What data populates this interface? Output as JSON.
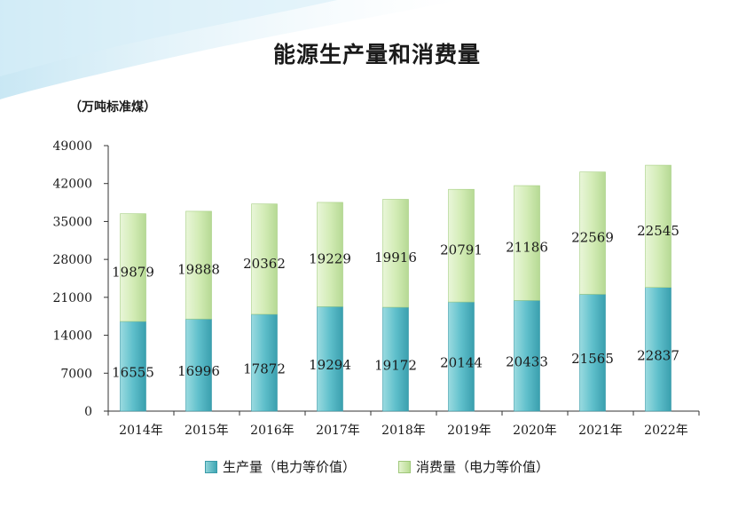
{
  "title": "能源生产量和消费量",
  "unit_label": "（万吨标准煤）",
  "legend": {
    "production": "生产量（电力等价值）",
    "consumption": "消费量（电力等价值）"
  },
  "colors": {
    "production": "#4fb3c0",
    "consumption": "#c8e6a6"
  },
  "chart_data": {
    "type": "bar",
    "stacked": true,
    "categories": [
      "2014年",
      "2015年",
      "2016年",
      "2017年",
      "2018年",
      "2019年",
      "2020年",
      "2021年",
      "2022年"
    ],
    "series": [
      {
        "name": "生产量（电力等价值）",
        "values": [
          16555,
          16996,
          17872,
          19294,
          19172,
          20144,
          20433,
          21565,
          22837
        ]
      },
      {
        "name": "消费量（电力等价值）",
        "values": [
          19879,
          19888,
          20362,
          19229,
          19916,
          20791,
          21186,
          22569,
          22545
        ]
      }
    ],
    "yticks": [
      0,
      7000,
      14000,
      21000,
      28000,
      35000,
      42000,
      49000
    ],
    "ylim": [
      0,
      49000
    ],
    "ylabel": "（万吨标准煤）",
    "legend_position": "bottom",
    "grid": false
  }
}
